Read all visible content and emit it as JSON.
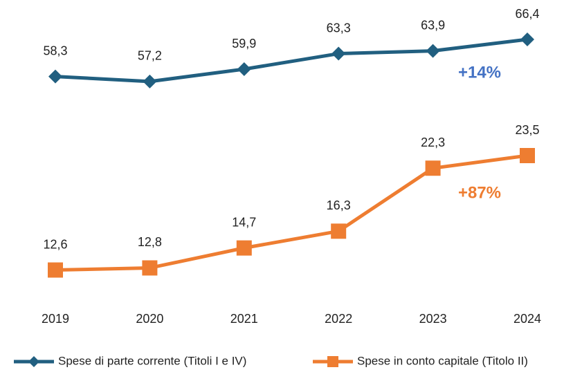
{
  "chart_data": {
    "type": "line",
    "categories": [
      "2019",
      "2020",
      "2021",
      "2022",
      "2023",
      "2024"
    ],
    "series": [
      {
        "name": "Spese di parte corrente (Titoli I e IV)",
        "color": "#215f80",
        "marker": "diamond",
        "values": [
          58.3,
          57.2,
          59.9,
          63.3,
          63.9,
          66.4
        ],
        "value_labels": [
          "58,3",
          "57,2",
          "59,9",
          "63,3",
          "63,9",
          "66,4"
        ]
      },
      {
        "name": "Spese in conto capitale (Titolo II)",
        "color": "#ee7d31",
        "marker": "square",
        "axis": "y2",
        "values": [
          12.6,
          12.8,
          14.7,
          16.3,
          22.3,
          23.5
        ],
        "value_labels": [
          "12,6",
          "12,8",
          "14,7",
          "16,3",
          "22,3",
          "23,5"
        ]
      }
    ],
    "ylim": [
      10,
      72
    ],
    "y2lim": [
      10,
      37
    ],
    "annotations": [
      {
        "text": "+14%",
        "color": "#4472c4"
      },
      {
        "text": "+87%",
        "color": "#ee7d31"
      }
    ],
    "legend": "bottom"
  }
}
